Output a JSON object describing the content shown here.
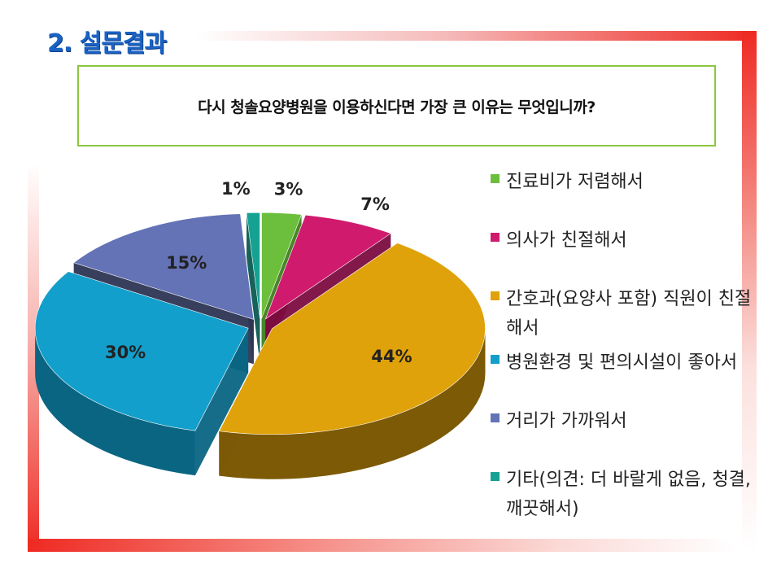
{
  "slide": {
    "title": "2. 설문결과",
    "question": "다시 청솔요양병원을 이용하신다면 가장 큰 이유는 무엇입니까?"
  },
  "chart_data": {
    "type": "pie",
    "title": "",
    "slices": [
      {
        "label": "진료비가 저렴해서",
        "value": 3,
        "pct_label": "3%",
        "color": "#6cbf3c",
        "side": "#3f7f1d"
      },
      {
        "label": "의사가 친절해서",
        "value": 7,
        "pct_label": "7%",
        "color": "#d01a6e",
        "side": "#7c0c40"
      },
      {
        "label": "간호과(요양사 포함) 직원이 친절해서",
        "value": 44,
        "pct_label": "44%",
        "color": "#e0a20a",
        "side": "#7c5a06"
      },
      {
        "label": "병원환경 및 편의시설이 좋아서",
        "value": 30,
        "pct_label": "30%",
        "color": "#129fcb",
        "side": "#0a6583"
      },
      {
        "label": "거리가 가까워서",
        "value": 15,
        "pct_label": "15%",
        "color": "#6472b6",
        "side": "#2d3553"
      },
      {
        "label": "기타(의견: 더 바랄게 없음, 청결, 깨끗해서)",
        "value": 1,
        "pct_label": "1%",
        "color": "#15a293",
        "side": "#0b5a52"
      }
    ],
    "legend_position": "right"
  }
}
